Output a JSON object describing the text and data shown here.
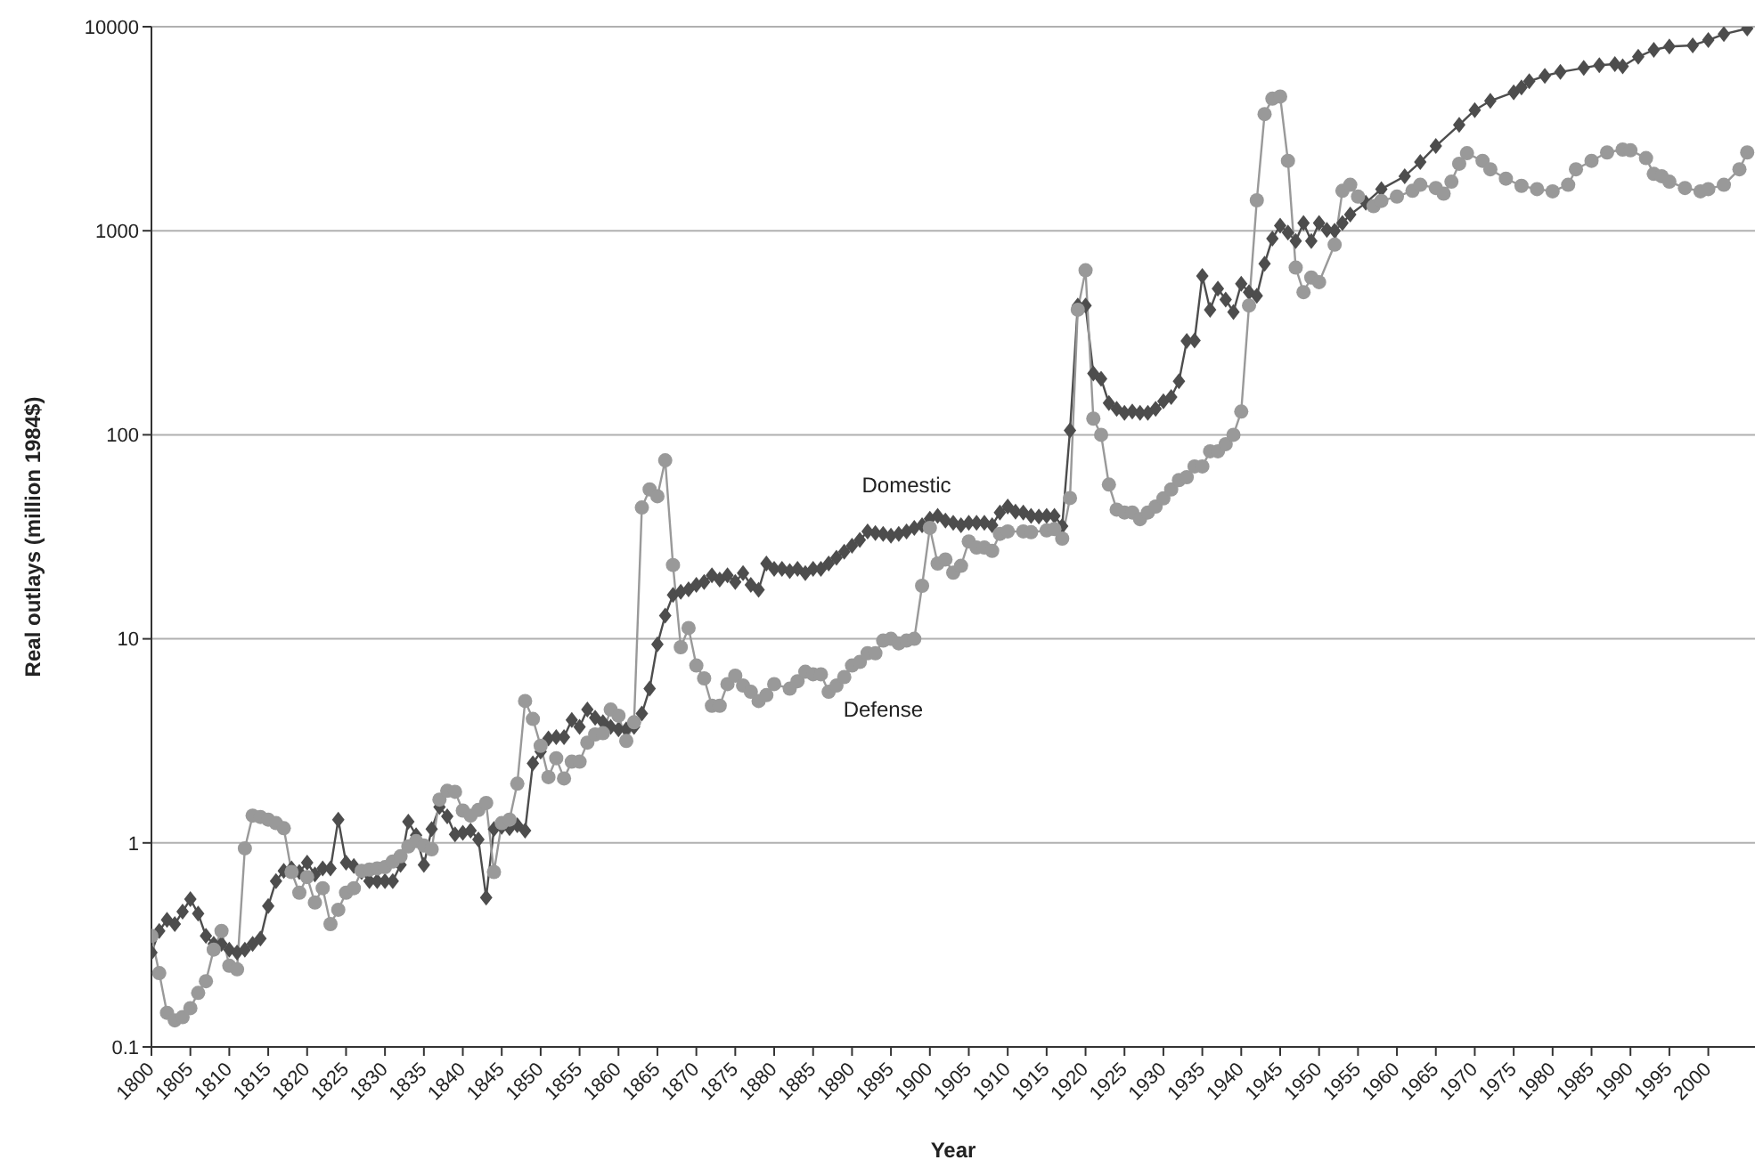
{
  "chart_data": {
    "type": "line",
    "xlabel": "Year",
    "ylabel": "Real outlays (million 1984$)",
    "log": "y",
    "grid": "y",
    "legend": false,
    "xlim": [
      1800,
      2006
    ],
    "xticks": [
      1800,
      1805,
      1810,
      1815,
      1820,
      1825,
      1830,
      1835,
      1840,
      1845,
      1850,
      1855,
      1860,
      1865,
      1870,
      1875,
      1880,
      1885,
      1890,
      1895,
      1900,
      1905,
      1910,
      1915,
      1920,
      1925,
      1930,
      1935,
      1940,
      1945,
      1950,
      1955,
      1960,
      1965,
      1970,
      1975,
      1980,
      1985,
      1990,
      1995,
      2000
    ],
    "ylim": [
      0.1,
      10000
    ],
    "yticks": [
      0.1,
      1,
      10,
      100,
      1000,
      10000
    ],
    "series": [
      {
        "name": "Domestic",
        "color": "#4d4d4d",
        "marker": "diamond",
        "x": [
          1800,
          1801,
          1802,
          1803,
          1804,
          1805,
          1806,
          1807,
          1808,
          1809,
          1810,
          1811,
          1812,
          1813,
          1814,
          1815,
          1816,
          1817,
          1818,
          1819,
          1820,
          1821,
          1822,
          1823,
          1824,
          1825,
          1826,
          1827,
          1828,
          1829,
          1830,
          1831,
          1832,
          1833,
          1834,
          1835,
          1836,
          1837,
          1838,
          1839,
          1840,
          1841,
          1842,
          1843,
          1844,
          1845,
          1846,
          1847,
          1848,
          1849,
          1850,
          1851,
          1852,
          1853,
          1854,
          1855,
          1856,
          1857,
          1858,
          1859,
          1860,
          1861,
          1862,
          1863,
          1864,
          1865,
          1866,
          1867,
          1868,
          1869,
          1870,
          1871,
          1872,
          1873,
          1874,
          1875,
          1876,
          1877,
          1878,
          1879,
          1880,
          1881,
          1882,
          1883,
          1884,
          1885,
          1886,
          1887,
          1888,
          1889,
          1890,
          1891,
          1892,
          1893,
          1894,
          1895,
          1896,
          1897,
          1898,
          1899,
          1900,
          1901,
          1902,
          1903,
          1904,
          1905,
          1906,
          1907,
          1908,
          1909,
          1910,
          1911,
          1912,
          1913,
          1914,
          1915,
          1916,
          1917,
          1918,
          1919,
          1920,
          1921,
          1922,
          1923,
          1924,
          1925,
          1926,
          1927,
          1928,
          1929,
          1930,
          1931,
          1932,
          1933,
          1934,
          1935,
          1936,
          1937,
          1938,
          1939,
          1940,
          1941,
          1942,
          1943,
          1944,
          1945,
          1946,
          1947,
          1948,
          1949,
          1950,
          1951,
          1952,
          1953,
          1954,
          1956,
          1958,
          1961,
          1963,
          1965,
          1968,
          1970,
          1972,
          1975,
          1976,
          1977,
          1979,
          1981,
          1984,
          1986,
          1988,
          1989,
          1991,
          1993,
          1995,
          1998,
          2000,
          2002,
          2005
        ],
        "values": [
          0.29,
          0.37,
          0.42,
          0.4,
          0.46,
          0.53,
          0.45,
          0.35,
          0.32,
          0.32,
          0.3,
          0.29,
          0.3,
          0.32,
          0.34,
          0.49,
          0.65,
          0.73,
          0.75,
          0.72,
          0.8,
          0.7,
          0.75,
          0.75,
          1.3,
          0.8,
          0.77,
          0.72,
          0.65,
          0.65,
          0.65,
          0.65,
          0.78,
          1.27,
          1.09,
          0.78,
          1.17,
          1.5,
          1.35,
          1.1,
          1.12,
          1.15,
          1.04,
          0.54,
          1.17,
          1.2,
          1.18,
          1.22,
          1.15,
          2.45,
          2.8,
          3.25,
          3.3,
          3.3,
          4,
          3.7,
          4.5,
          4.1,
          3.9,
          3.7,
          3.6,
          3.6,
          3.7,
          4.3,
          5.7,
          9.4,
          13,
          16.4,
          17,
          17.5,
          18.4,
          19,
          20.5,
          19.5,
          20.5,
          19,
          21,
          18.4,
          17.4,
          23.4,
          22,
          22,
          21.5,
          22,
          21,
          22,
          22,
          23.4,
          25,
          26.7,
          28.6,
          30.5,
          33.6,
          33,
          32.7,
          32,
          32.7,
          33.6,
          35,
          36,
          38.8,
          40,
          38,
          37,
          36,
          37,
          37,
          37,
          36,
          41.6,
          44.5,
          42,
          41.6,
          40,
          39.7,
          40,
          40,
          35.7,
          105,
          430,
          430,
          200,
          188,
          143,
          134,
          128,
          130,
          128,
          128,
          134,
          146,
          153,
          183,
          288,
          290,
          600,
          410,
          520,
          460,
          400,
          550,
          500,
          480,
          690,
          915,
          1060,
          980,
          890,
          1090,
          890,
          1090,
          1010,
          1000,
          1090,
          1200,
          1370,
          1600,
          1850,
          2170,
          2600,
          3300,
          3900,
          4330,
          4770,
          5040,
          5400,
          5740,
          6000,
          6280,
          6480,
          6560,
          6400,
          7120,
          7700,
          8000,
          8100,
          8600,
          9200,
          9800
        ]
      },
      {
        "name": "Defense",
        "color": "#999999",
        "marker": "circle",
        "x": [
          1800,
          1801,
          1802,
          1803,
          1804,
          1805,
          1806,
          1807,
          1808,
          1809,
          1810,
          1811,
          1812,
          1813,
          1814,
          1815,
          1816,
          1817,
          1818,
          1819,
          1820,
          1821,
          1822,
          1823,
          1824,
          1825,
          1826,
          1827,
          1828,
          1829,
          1830,
          1831,
          1832,
          1833,
          1834,
          1835,
          1836,
          1837,
          1838,
          1839,
          1840,
          1841,
          1842,
          1843,
          1844,
          1845,
          1846,
          1847,
          1848,
          1849,
          1850,
          1851,
          1852,
          1853,
          1854,
          1855,
          1856,
          1857,
          1858,
          1859,
          1860,
          1861,
          1862,
          1863,
          1864,
          1865,
          1866,
          1867,
          1868,
          1869,
          1870,
          1871,
          1872,
          1873,
          1874,
          1875,
          1876,
          1877,
          1878,
          1879,
          1880,
          1882,
          1883,
          1884,
          1885,
          1886,
          1887,
          1888,
          1889,
          1890,
          1891,
          1892,
          1893,
          1894,
          1895,
          1896,
          1897,
          1898,
          1899,
          1900,
          1901,
          1902,
          1903,
          1904,
          1905,
          1906,
          1907,
          1908,
          1909,
          1910,
          1912,
          1913,
          1915,
          1916,
          1917,
          1918,
          1919,
          1920,
          1921,
          1922,
          1923,
          1924,
          1925,
          1926,
          1927,
          1928,
          1929,
          1930,
          1931,
          1932,
          1933,
          1934,
          1935,
          1936,
          1937,
          1938,
          1939,
          1940,
          1941,
          1942,
          1943,
          1944,
          1945,
          1946,
          1947,
          1948,
          1949,
          1950,
          1952,
          1953,
          1954,
          1955,
          1957,
          1958,
          1960,
          1962,
          1963,
          1965,
          1966,
          1967,
          1968,
          1969,
          1971,
          1972,
          1974,
          1976,
          1978,
          1980,
          1982,
          1983,
          1985,
          1987,
          1989,
          1990,
          1992,
          1993,
          1994,
          1995,
          1997,
          1999,
          2000,
          2002,
          2004,
          2005
        ],
        "values": [
          0.35,
          0.23,
          0.147,
          0.135,
          0.14,
          0.155,
          0.184,
          0.21,
          0.3,
          0.37,
          0.25,
          0.24,
          0.94,
          1.36,
          1.34,
          1.3,
          1.25,
          1.18,
          0.72,
          0.57,
          0.68,
          0.51,
          0.6,
          0.4,
          0.47,
          0.57,
          0.6,
          0.73,
          0.74,
          0.75,
          0.76,
          0.81,
          0.86,
          0.96,
          1.02,
          0.97,
          0.93,
          1.63,
          1.8,
          1.78,
          1.44,
          1.36,
          1.45,
          1.57,
          0.72,
          1.25,
          1.3,
          1.95,
          4.96,
          4.05,
          2.99,
          2.1,
          2.6,
          2.07,
          2.5,
          2.5,
          3.1,
          3.4,
          3.45,
          4.5,
          4.2,
          3.16,
          3.9,
          44,
          54,
          50,
          75,
          23,
          9.1,
          11.3,
          7.4,
          6.4,
          4.7,
          4.7,
          6,
          6.6,
          5.9,
          5.5,
          4.96,
          5.3,
          6,
          5.7,
          6.2,
          6.9,
          6.7,
          6.7,
          5.5,
          5.9,
          6.5,
          7.4,
          7.7,
          8.5,
          8.5,
          9.8,
          10,
          9.5,
          9.8,
          10,
          18.2,
          35,
          23.4,
          24.5,
          21.1,
          22.8,
          30,
          28,
          28,
          27,
          32.7,
          33.6,
          33.6,
          33.3,
          34,
          34.5,
          31,
          49,
          410,
          640,
          120,
          100,
          57,
          43,
          41.6,
          41.6,
          38.6,
          41.6,
          44.5,
          48.8,
          54,
          60,
          62,
          70,
          70,
          83,
          83,
          90,
          100,
          130,
          430,
          1410,
          3730,
          4440,
          4550,
          2200,
          660,
          500,
          590,
          560,
          855,
          1570,
          1680,
          1470,
          1320,
          1400,
          1470,
          1570,
          1680,
          1620,
          1520,
          1740,
          2130,
          2400,
          2200,
          2000,
          1800,
          1660,
          1600,
          1560,
          1680,
          2000,
          2200,
          2420,
          2500,
          2480,
          2270,
          1900,
          1850,
          1740,
          1620,
          1560,
          1600,
          1680,
          2000,
          2420
        ]
      }
    ]
  }
}
